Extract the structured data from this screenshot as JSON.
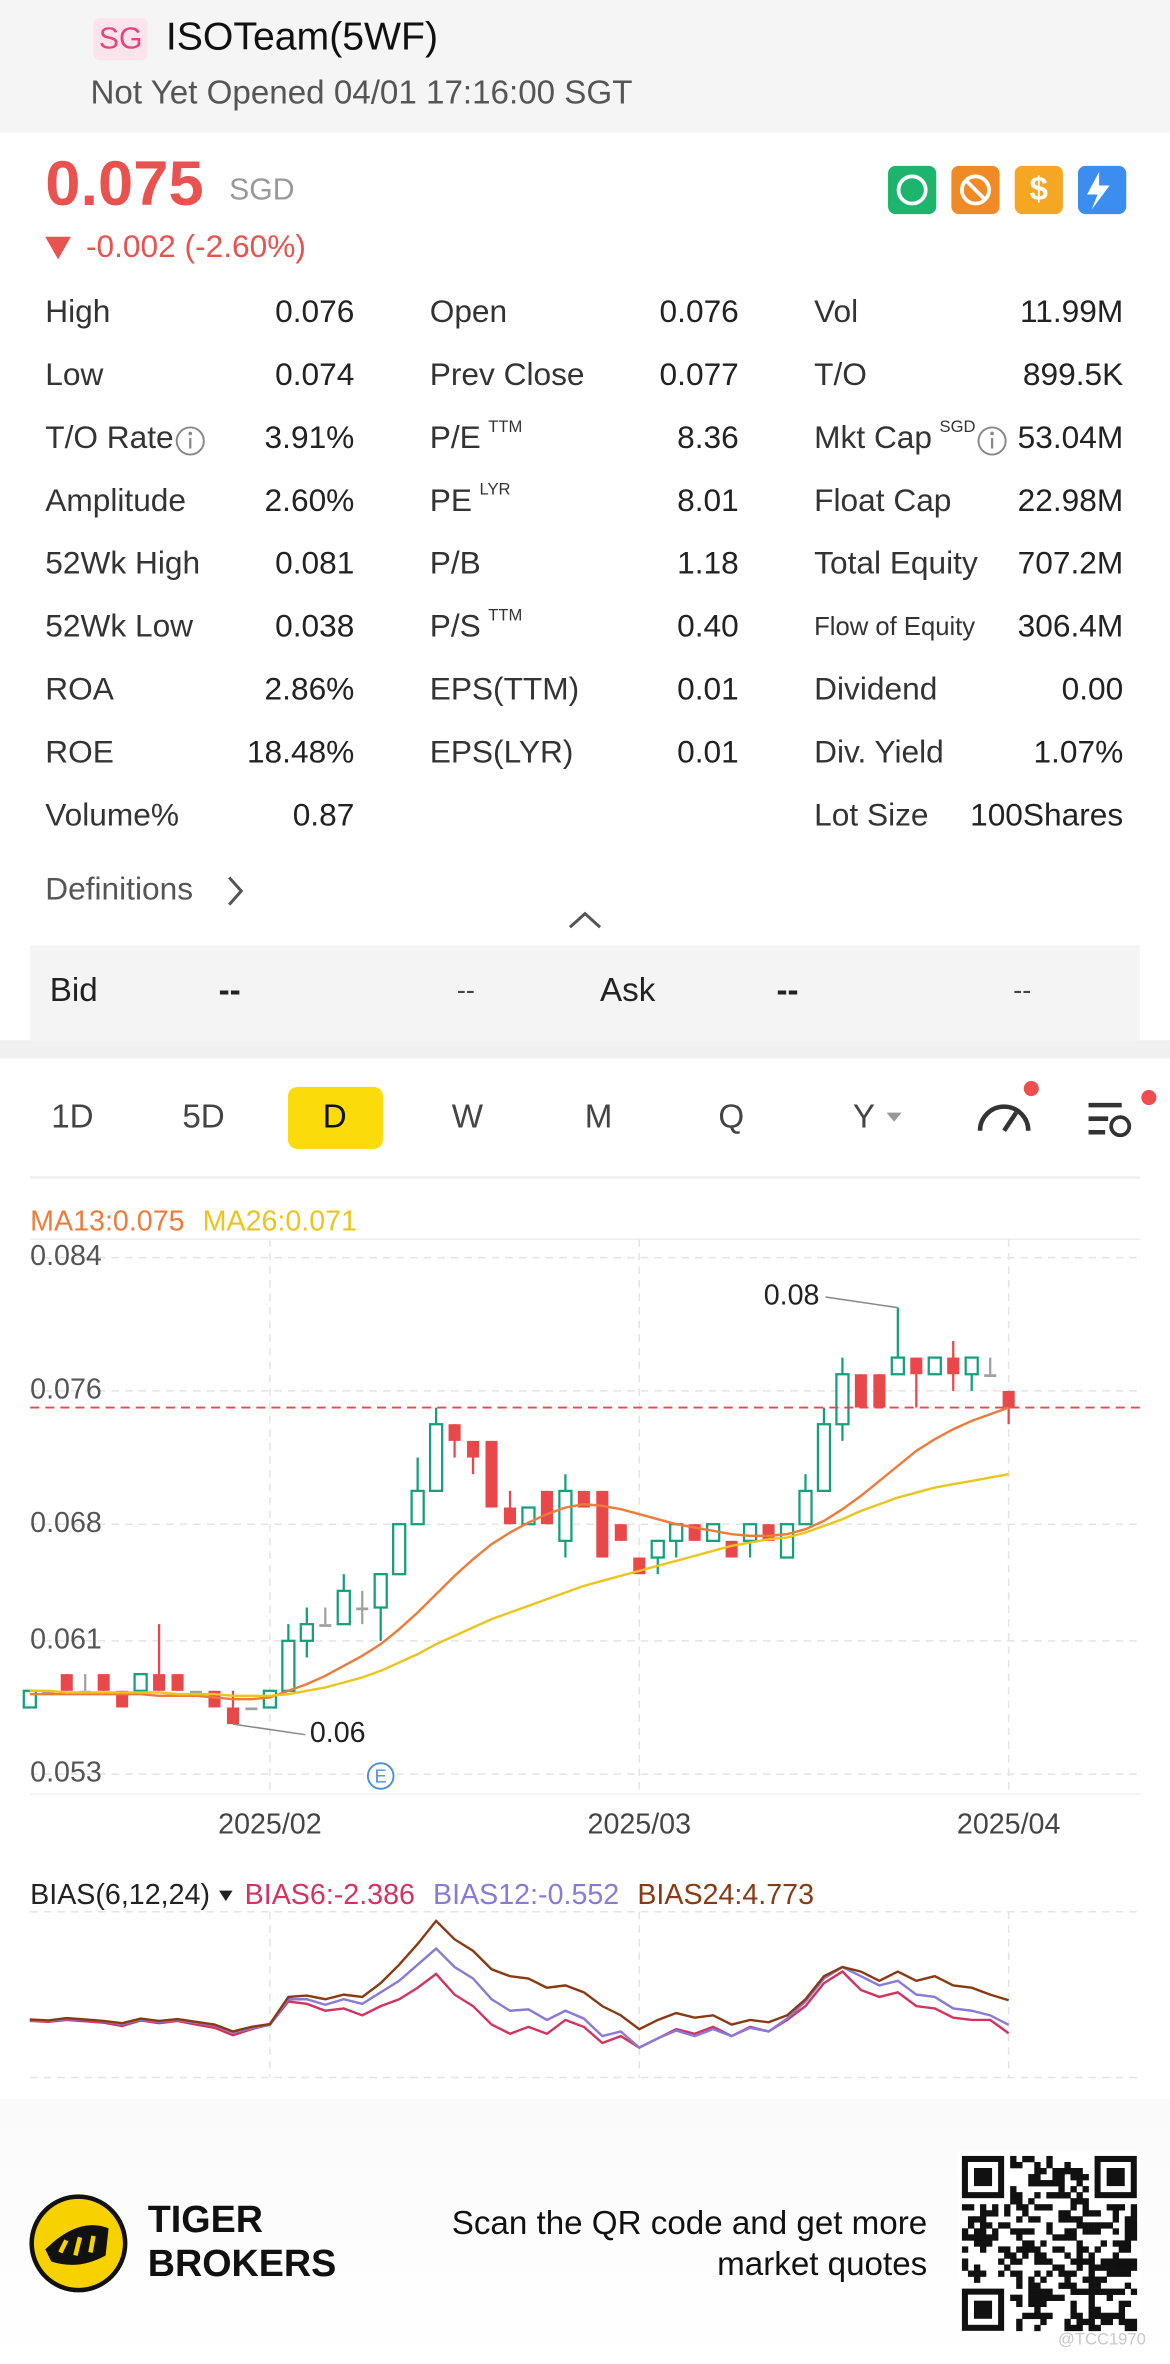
{
  "header": {
    "badge": "SG",
    "title": "ISOTeam(5WF)",
    "status": "Not Yet Opened 04/01 17:16:00 SGT"
  },
  "quote": {
    "price": "0.075",
    "currency": "SGD",
    "change": "-0.002 (-2.60%)"
  },
  "stats": {
    "columns": [
      [
        {
          "label": "High",
          "value": "0.076"
        },
        {
          "label": "Low",
          "value": "0.074"
        },
        {
          "label": "T/O Rate",
          "value": "3.91%",
          "info": true
        },
        {
          "label": "Amplitude",
          "value": "2.60%"
        },
        {
          "label": "52Wk High",
          "value": "0.081"
        },
        {
          "label": "52Wk Low",
          "value": "0.038"
        },
        {
          "label": "ROA",
          "value": "2.86%"
        },
        {
          "label": "ROE",
          "value": "18.48%"
        },
        {
          "label": "Volume%",
          "value": "0.87"
        }
      ],
      [
        {
          "label": "Open",
          "value": "0.076"
        },
        {
          "label": "Prev Close",
          "value": "0.077"
        },
        {
          "label": "P/E",
          "sup": "TTM",
          "value": "8.36"
        },
        {
          "label": "PE",
          "sup": "LYR",
          "value": "8.01"
        },
        {
          "label": "P/B",
          "value": "1.18"
        },
        {
          "label": "P/S",
          "sup": "TTM",
          "value": "0.40"
        },
        {
          "label": "EPS(TTM)",
          "value": "0.01"
        },
        {
          "label": "EPS(LYR)",
          "value": "0.01"
        }
      ],
      [
        {
          "label": "Vol",
          "value": "11.99M"
        },
        {
          "label": "T/O",
          "value": "899.5K"
        },
        {
          "label": "Mkt Cap",
          "sup": "SGD",
          "value": "53.04M",
          "info": true
        },
        {
          "label": "Float Cap",
          "value": "22.98M"
        },
        {
          "label": "Total Equity",
          "value": "707.2M"
        },
        {
          "label": "Flow of Equity",
          "value": "306.4M",
          "small": true
        },
        {
          "label": "Dividend",
          "value": "0.00"
        },
        {
          "label": "Div. Yield",
          "value": "1.07%"
        },
        {
          "label": "Lot Size",
          "value": "100Shares"
        }
      ]
    ]
  },
  "definitions": "Definitions",
  "bid_ask": {
    "bid_label": "Bid",
    "bid_price": "--",
    "bid_size": "--",
    "ask_label": "Ask",
    "ask_price": "--",
    "ask_size": "--"
  },
  "tabs": [
    "1D",
    "5D",
    "D",
    "W",
    "M",
    "Q",
    "Y"
  ],
  "active_tab": "D",
  "chart_data": [
    {
      "type": "candlestick",
      "categories": [
        null,
        null,
        null,
        null,
        null,
        null,
        null,
        null,
        null,
        null,
        null,
        null,
        null,
        "2025/02",
        null,
        null,
        null,
        null,
        null,
        null,
        null,
        null,
        null,
        null,
        null,
        null,
        null,
        null,
        null,
        null,
        null,
        null,
        null,
        "2025/03",
        null,
        null,
        null,
        null,
        null,
        null,
        null,
        null,
        null,
        null,
        null,
        null,
        null,
        null,
        null,
        null,
        null,
        null,
        null,
        "2025/04"
      ],
      "open": [
        0.057,
        0.058,
        0.059,
        0.058,
        0.059,
        0.058,
        0.058,
        0.059,
        0.059,
        0.058,
        0.058,
        0.057,
        0.057,
        0.057,
        0.058,
        0.061,
        0.062,
        0.062,
        0.063,
        0.063,
        0.065,
        0.068,
        0.07,
        0.074,
        0.073,
        0.073,
        0.069,
        0.068,
        0.07,
        0.067,
        0.07,
        0.07,
        0.068,
        0.066,
        0.066,
        0.067,
        0.068,
        0.067,
        0.067,
        0.067,
        0.068,
        0.066,
        0.068,
        0.07,
        0.074,
        0.077,
        0.077,
        0.077,
        0.078,
        0.077,
        0.078,
        0.077,
        0.077,
        0.076
      ],
      "high": [
        0.058,
        0.058,
        0.059,
        0.059,
        0.059,
        0.058,
        0.059,
        0.062,
        0.059,
        0.058,
        0.058,
        0.058,
        0.057,
        0.058,
        0.062,
        0.063,
        0.063,
        0.065,
        0.064,
        0.065,
        0.068,
        0.072,
        0.075,
        0.074,
        0.073,
        0.073,
        0.07,
        0.069,
        0.07,
        0.071,
        0.07,
        0.07,
        0.068,
        0.066,
        0.067,
        0.068,
        0.068,
        0.068,
        0.067,
        0.068,
        0.068,
        0.068,
        0.071,
        0.075,
        0.078,
        0.077,
        0.077,
        0.081,
        0.078,
        0.078,
        0.079,
        0.078,
        0.078,
        0.076
      ],
      "low": [
        0.057,
        0.058,
        0.058,
        0.058,
        0.058,
        0.057,
        0.058,
        0.058,
        0.058,
        0.058,
        0.057,
        0.056,
        0.057,
        0.057,
        0.058,
        0.06,
        0.062,
        0.062,
        0.062,
        0.061,
        0.065,
        0.068,
        0.07,
        0.072,
        0.071,
        0.069,
        0.068,
        0.068,
        0.068,
        0.066,
        0.069,
        0.066,
        0.067,
        0.065,
        0.065,
        0.066,
        0.067,
        0.067,
        0.066,
        0.066,
        0.067,
        0.066,
        0.068,
        0.07,
        0.073,
        0.075,
        0.075,
        0.077,
        0.075,
        0.077,
        0.076,
        0.076,
        0.077,
        0.074
      ],
      "close": [
        0.058,
        0.058,
        0.058,
        0.058,
        0.058,
        0.057,
        0.059,
        0.058,
        0.058,
        0.058,
        0.057,
        0.056,
        0.057,
        0.058,
        0.061,
        0.062,
        0.062,
        0.064,
        0.063,
        0.065,
        0.068,
        0.07,
        0.074,
        0.073,
        0.072,
        0.069,
        0.068,
        0.069,
        0.068,
        0.07,
        0.069,
        0.066,
        0.067,
        0.065,
        0.067,
        0.068,
        0.067,
        0.068,
        0.066,
        0.068,
        0.067,
        0.068,
        0.07,
        0.074,
        0.077,
        0.075,
        0.075,
        0.078,
        0.077,
        0.078,
        0.077,
        0.078,
        0.077,
        0.075
      ],
      "colors": {
        "up": "#14a07c",
        "down": "#e8484a",
        "flat": "#a0a0a0"
      },
      "series": [
        {
          "name": "MA13:0.075",
          "color": "#ee7b3a",
          "values": [
            0.0578,
            0.0578,
            0.0578,
            0.0578,
            0.0578,
            0.0578,
            0.0578,
            0.0577,
            0.0577,
            0.0577,
            0.0576,
            0.0575,
            0.0575,
            0.0576,
            0.058,
            0.0584,
            0.0589,
            0.0595,
            0.0601,
            0.0608,
            0.0617,
            0.0627,
            0.0638,
            0.0649,
            0.0659,
            0.0668,
            0.0675,
            0.0681,
            0.0686,
            0.069,
            0.0692,
            0.0691,
            0.0689,
            0.0686,
            0.0683,
            0.068,
            0.0678,
            0.0676,
            0.0674,
            0.0673,
            0.0673,
            0.0674,
            0.0677,
            0.0682,
            0.0689,
            0.0697,
            0.0706,
            0.0715,
            0.0724,
            0.0731,
            0.0737,
            0.0742,
            0.0746,
            0.075
          ]
        },
        {
          "name": "MA26:0.071",
          "color": "#ebc41c",
          "values": [
            0.058,
            0.058,
            0.0579,
            0.0579,
            0.0579,
            0.0579,
            0.0579,
            0.0579,
            0.0578,
            0.0578,
            0.0578,
            0.0577,
            0.0577,
            0.0577,
            0.0578,
            0.058,
            0.0582,
            0.0585,
            0.0588,
            0.0592,
            0.0597,
            0.0602,
            0.0608,
            0.0613,
            0.0618,
            0.0623,
            0.0627,
            0.0631,
            0.0635,
            0.0639,
            0.0643,
            0.0646,
            0.0649,
            0.0652,
            0.0655,
            0.0658,
            0.0661,
            0.0664,
            0.0667,
            0.0669,
            0.0671,
            0.0672,
            0.0675,
            0.0679,
            0.0683,
            0.0688,
            0.0692,
            0.0696,
            0.0699,
            0.0702,
            0.0704,
            0.0706,
            0.0708,
            0.071
          ]
        }
      ],
      "last_price": 0.075,
      "annotations": [
        {
          "value": 0.081,
          "label": "0.08",
          "field": "high"
        },
        {
          "value": 0.056,
          "label": "0.06",
          "field": "low"
        }
      ],
      "events": [
        {
          "x": 19,
          "label": "E"
        }
      ],
      "ylim": [
        0.0518,
        0.0851
      ],
      "yticks": [
        0.084,
        0.076,
        0.068,
        0.061,
        0.053
      ],
      "grid": true
    },
    {
      "type": "line",
      "title": "BIAS(6,12,24)",
      "series": [
        {
          "name": "BIAS6:-2.386",
          "color": "#d4335f",
          "values": [
            0.3,
            0.1,
            0.5,
            0.2,
            -0.1,
            -0.8,
            0.4,
            -0.2,
            0.3,
            -0.5,
            -1.2,
            -2.8,
            -1.5,
            -0.5,
            4.5,
            4.0,
            2.5,
            3.0,
            1.5,
            3.5,
            5.0,
            7.5,
            10.5,
            6.0,
            3.5,
            -0.5,
            -2.5,
            -1.0,
            -2.5,
            0.5,
            -1.0,
            -4.5,
            -3.0,
            -5.5,
            -3.5,
            -1.5,
            -2.5,
            -1.0,
            -3.0,
            -1.0,
            -2.0,
            0.5,
            3.5,
            8.5,
            11.0,
            7.0,
            5.5,
            6.5,
            3.5,
            3.0,
            1.0,
            0.5,
            0.5,
            -2.386
          ]
        },
        {
          "name": "BIAS12:-0.552",
          "color": "#8a7ad6",
          "values": [
            0.4,
            0.3,
            0.7,
            0.5,
            0.2,
            -0.4,
            0.6,
            0.1,
            0.5,
            -0.1,
            -0.7,
            -2.2,
            -1.3,
            -0.6,
            5.0,
            5.0,
            3.8,
            5.0,
            4.0,
            6.5,
            9.0,
            12.5,
            16.0,
            12.0,
            9.5,
            5.0,
            2.5,
            2.8,
            0.5,
            2.5,
            0.8,
            -3.0,
            -2.0,
            -5.5,
            -3.5,
            -1.8,
            -3.0,
            -1.5,
            -3.0,
            -1.2,
            -2.0,
            0.8,
            4.5,
            9.5,
            12.0,
            10.0,
            8.0,
            9.0,
            6.0,
            5.5,
            3.0,
            2.5,
            1.5,
            -0.552
          ]
        },
        {
          "name": "BIAS24:4.773",
          "color": "#8a3a12",
          "values": [
            0.6,
            0.4,
            0.9,
            0.6,
            0.3,
            -0.2,
            0.8,
            0.3,
            0.7,
            0.1,
            -0.5,
            -2.0,
            -1.0,
            -0.4,
            5.5,
            5.8,
            5.0,
            6.0,
            5.5,
            8.5,
            12.5,
            17.0,
            22.0,
            18.0,
            15.5,
            11.5,
            10.0,
            9.5,
            7.5,
            8.0,
            6.5,
            3.5,
            1.5,
            -1.5,
            0.5,
            2.0,
            1.0,
            1.5,
            -0.5,
            0.5,
            0.0,
            1.5,
            5.0,
            10.0,
            12.0,
            11.0,
            9.0,
            11.0,
            9.0,
            10.0,
            8.0,
            7.5,
            6.0,
            4.773
          ]
        }
      ],
      "ylim": [
        -12,
        24
      ]
    }
  ],
  "footer": {
    "brand_line1": "TIGER",
    "brand_line2": "BROKERS",
    "cta_line1": "Scan the QR code and get more",
    "cta_line2": "market quotes",
    "watermark": "@TCC1970"
  }
}
